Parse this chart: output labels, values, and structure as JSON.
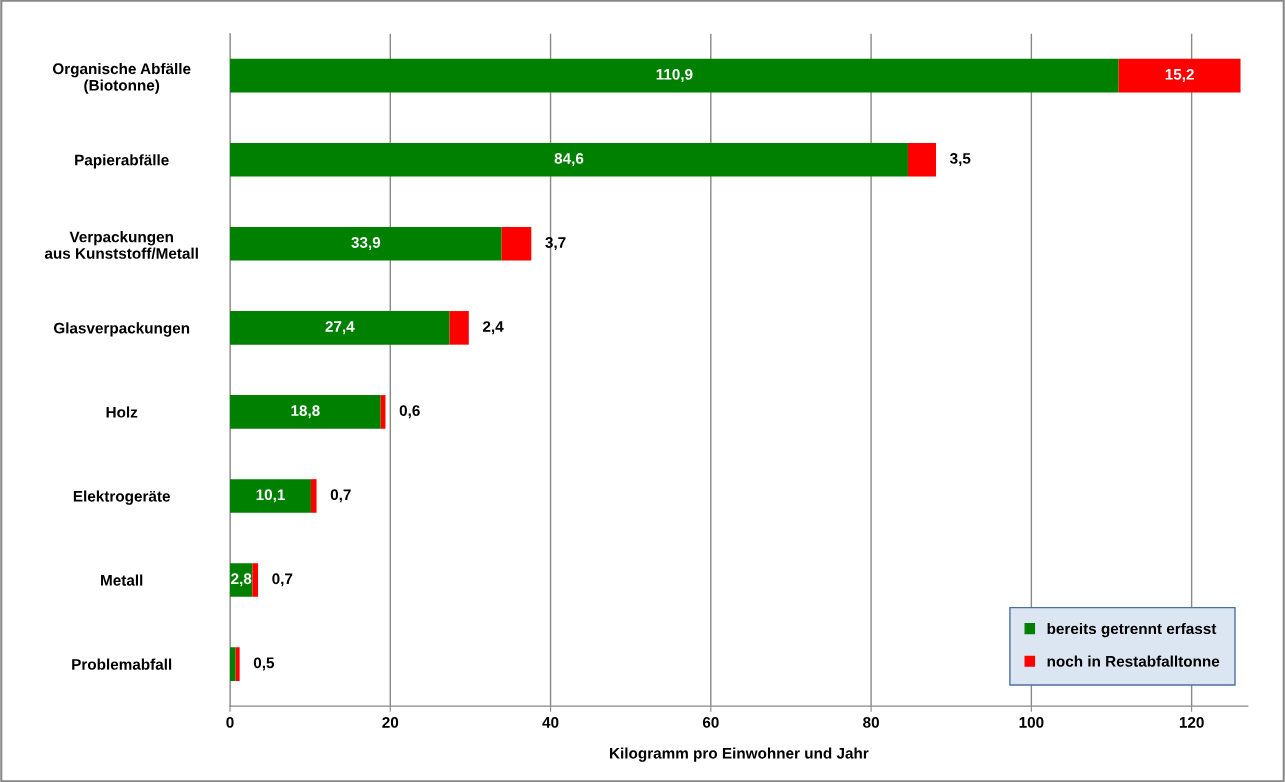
{
  "chart_data": {
    "type": "bar",
    "orientation": "horizontal",
    "stacked": true,
    "xlabel": "Kilogramm pro Einwohner und Jahr",
    "categories": [
      "Organische Abfälle\n(Biotonne)",
      "Papierabfälle",
      "Verpackungen\naus Kunststoff/Metall",
      "Glasverpackungen",
      "Holz",
      "Elektrogeräte",
      "Metall",
      "Problemabfall"
    ],
    "series": [
      {
        "name": "bereits getrennt erfasst",
        "color": "#008000",
        "values": [
          110.9,
          84.6,
          33.9,
          27.4,
          18.8,
          10.1,
          2.8,
          0.7
        ],
        "value_labels": [
          "110,9",
          "84,6",
          "33,9",
          "27,4",
          "18,8",
          "10,1",
          "2,8",
          null
        ]
      },
      {
        "name": "noch in Restabfalltonne",
        "color": "#ff0000",
        "values": [
          15.2,
          3.5,
          3.7,
          2.4,
          0.6,
          0.7,
          0.7,
          0.5
        ],
        "value_labels": [
          "15,2",
          "3,5",
          "3,7",
          "2,4",
          "0,6",
          "0,7",
          "0,7",
          "0,5"
        ]
      }
    ],
    "xlim": [
      0,
      127
    ],
    "xticks": [
      0,
      20,
      40,
      60,
      80,
      100,
      120
    ],
    "grid": "x",
    "legend": "bottom right"
  }
}
